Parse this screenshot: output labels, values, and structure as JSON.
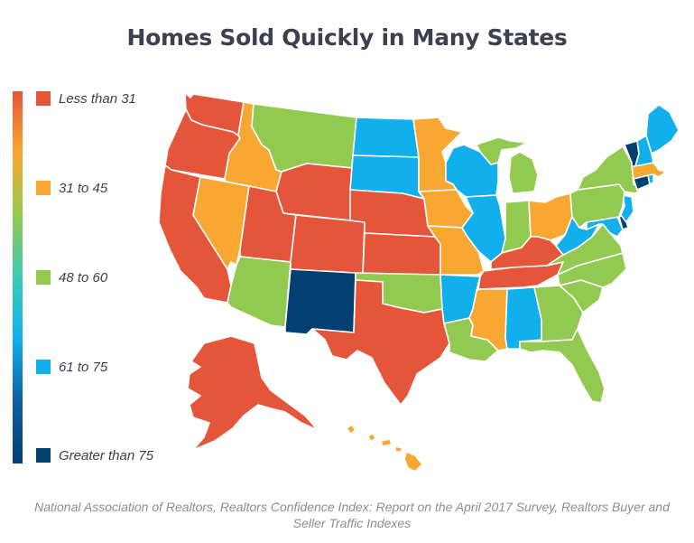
{
  "title": "Homes Sold Quickly in Many States",
  "legend": [
    {
      "label": "Less than 31",
      "color": "#e5553a"
    },
    {
      "label": "31 to 45",
      "color": "#f8a732"
    },
    {
      "label": "48 to 60",
      "color": "#92c950"
    },
    {
      "label": "61 to 75",
      "color": "#11b0ec"
    },
    {
      "label": "Greater than 75",
      "color": "#033f70"
    }
  ],
  "legend_gradient": [
    "#e5553a",
    "#f8a732",
    "#92c950",
    "#3ec9b5",
    "#11b0ec",
    "#0d5f9f",
    "#033f70"
  ],
  "states": {
    "WA": 0,
    "OR": 0,
    "CA": 0,
    "ID": 1,
    "NV": 1,
    "MT": 2,
    "WY": 0,
    "UT": 0,
    "AZ": 2,
    "CO": 0,
    "NM": 4,
    "ND": 3,
    "SD": 3,
    "NE": 0,
    "KS": 0,
    "OK": 2,
    "TX": 0,
    "MN": 1,
    "IA": 1,
    "MO": 1,
    "AR": 3,
    "LA": 2,
    "WI": 3,
    "IL": 3,
    "MI": 2,
    "IN": 2,
    "OH": 1,
    "KY": 0,
    "TN": 0,
    "MS": 1,
    "AL": 3,
    "GA": 2,
    "FL": 2,
    "SC": 2,
    "NC": 2,
    "VA": 2,
    "WV": 3,
    "MD": 3,
    "DE": 4,
    "NJ": 3,
    "PA": 2,
    "NY": 2,
    "CT": 4,
    "RI": 3,
    "MA": 1,
    "VT": 4,
    "NH": 3,
    "ME": 3,
    "AK": 0,
    "HI": 1
  },
  "source": "National Association of Realtors, Realtors Confidence Index: Report on the April 2017 Survey, Realtors Buyer and Seller Traffic Indexes"
}
